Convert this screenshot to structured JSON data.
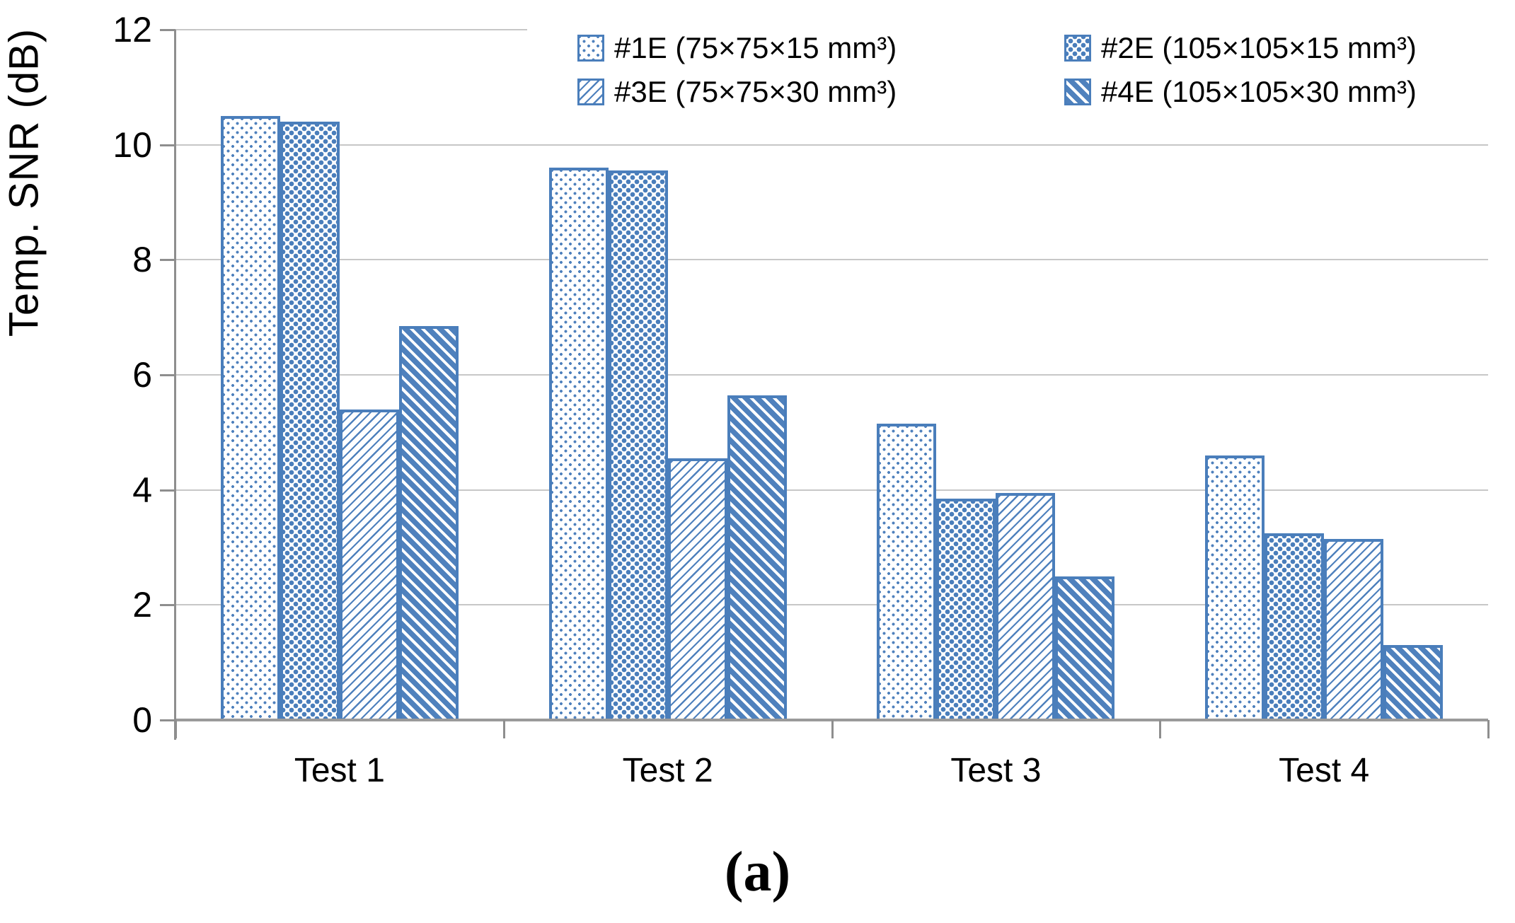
{
  "figure": {
    "caption": "(a)"
  },
  "chart_data": {
    "type": "bar",
    "title": "",
    "xlabel": "",
    "ylabel": "Temp. SNR (dB)",
    "categories": [
      "Test 1",
      "Test 2",
      "Test 3",
      "Test 4"
    ],
    "series": [
      {
        "name": "#1E (75×75×15 mm³)",
        "pattern": "fine-dots",
        "values": [
          10.5,
          9.6,
          5.15,
          4.6
        ]
      },
      {
        "name": "#2E (105×105×15 mm³)",
        "pattern": "coarse-dots",
        "values": [
          10.4,
          9.55,
          3.85,
          3.25
        ]
      },
      {
        "name": "#3E (75×75×30 mm³)",
        "pattern": "light-diagonal",
        "values": [
          5.4,
          4.55,
          3.95,
          3.15
        ]
      },
      {
        "name": "#4E (105×105×30 mm³)",
        "pattern": "dense-diagonal",
        "values": [
          6.85,
          5.65,
          2.5,
          1.3
        ]
      }
    ],
    "ylim": [
      0,
      12
    ],
    "yticks": [
      0,
      2,
      4,
      6,
      8,
      10,
      12
    ],
    "grid": true,
    "legend_position": "top-right",
    "colors": {
      "bar_blue": "#4f81bd",
      "bar_border": "#4a7ebb",
      "gridline": "#c7c7c7",
      "axis": "#8e8e8e",
      "text": "#000000"
    }
  }
}
